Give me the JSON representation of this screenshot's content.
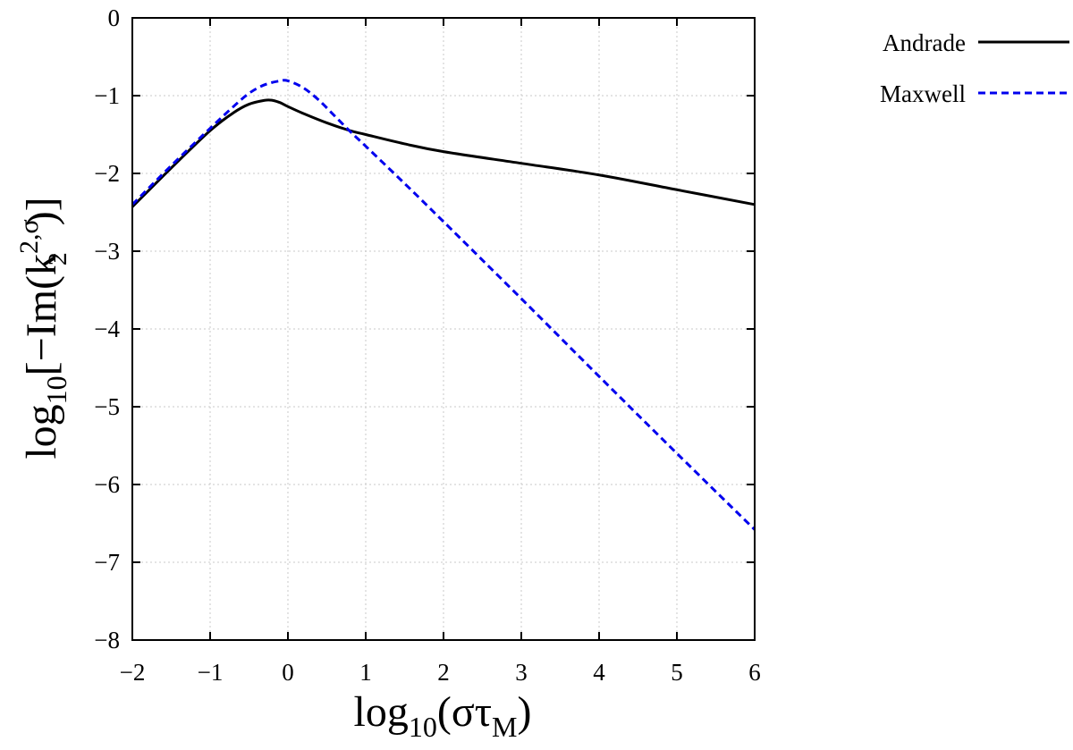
{
  "chart_data": {
    "type": "line",
    "xlabel": {
      "base": "log",
      "sub": "10",
      "arg": "(στ",
      "argsub": "M",
      "close": ")"
    },
    "ylabel": {
      "base": "log",
      "sub": "10",
      "open": "[−Im(k",
      "ksub": "2",
      "ksup": "2,σ",
      "close": ")]"
    },
    "xlim": [
      -2,
      6
    ],
    "ylim": [
      -8,
      0
    ],
    "x_ticks": [
      "−2",
      "−1",
      "0",
      "1",
      "2",
      "3",
      "4",
      "5",
      "6"
    ],
    "y_ticks": [
      "0",
      "−1",
      "−2",
      "−3",
      "−4",
      "−5",
      "−6",
      "−7",
      "−8"
    ],
    "grid": true,
    "legend_position": "top-right-outside",
    "series": [
      {
        "name": "Andrade",
        "color": "#000000",
        "style": "solid",
        "x": [
          -2,
          -1.5,
          -1.0,
          -0.7,
          -0.5,
          -0.3,
          -0.2,
          -0.1,
          0.0,
          0.2,
          0.5,
          0.8,
          1.0,
          1.5,
          2.0,
          3.0,
          4.0,
          5.0,
          6.0
        ],
        "y": [
          -2.43,
          -1.93,
          -1.45,
          -1.22,
          -1.11,
          -1.06,
          -1.06,
          -1.09,
          -1.14,
          -1.23,
          -1.35,
          -1.45,
          -1.5,
          -1.62,
          -1.72,
          -1.87,
          -2.02,
          -2.21,
          -2.4
        ]
      },
      {
        "name": "Maxwell",
        "color": "#0000ee",
        "style": "dashed",
        "x": [
          -2,
          -1.5,
          -1.0,
          -0.7,
          -0.5,
          -0.3,
          -0.1,
          0.0,
          0.2,
          0.4,
          0.6,
          0.8,
          1.0,
          1.5,
          2.0,
          3.0,
          4.0,
          5.0,
          6.0
        ],
        "y": [
          -2.4,
          -1.9,
          -1.42,
          -1.14,
          -0.97,
          -0.86,
          -0.81,
          -0.81,
          -0.9,
          -1.06,
          -1.26,
          -1.46,
          -1.65,
          -2.13,
          -2.62,
          -3.61,
          -4.61,
          -5.6,
          -6.58
        ]
      }
    ]
  }
}
